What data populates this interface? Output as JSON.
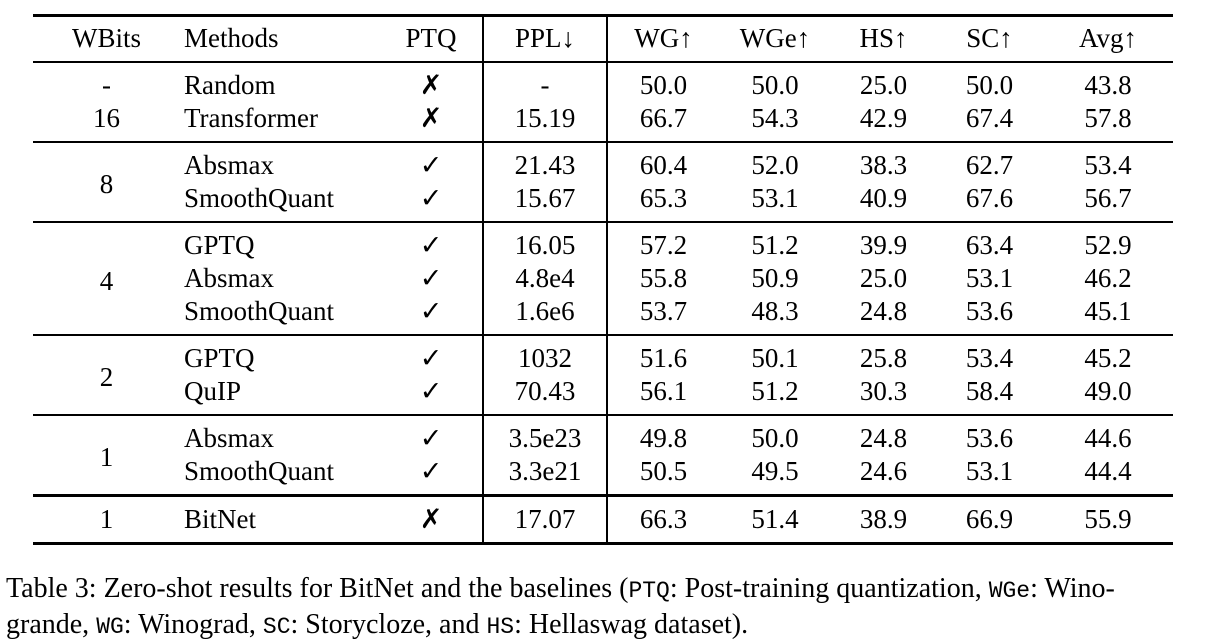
{
  "table": {
    "columns": [
      {
        "key": "wbits",
        "label": "WBits"
      },
      {
        "key": "methods",
        "label": "Methods"
      },
      {
        "key": "ptq",
        "label": "PTQ"
      },
      {
        "key": "ppl",
        "label": "PPL↓"
      },
      {
        "key": "wg",
        "label": "WG↑"
      },
      {
        "key": "wge",
        "label": "WGe↑"
      },
      {
        "key": "hs",
        "label": "HS↑"
      },
      {
        "key": "sc",
        "label": "SC↑"
      },
      {
        "key": "avg",
        "label": "Avg↑"
      }
    ],
    "groups": [
      {
        "wbits": null,
        "rows": [
          [
            "-",
            "Random",
            "✗",
            "-",
            "50.0",
            "50.0",
            "25.0",
            "50.0",
            "43.8"
          ],
          [
            "16",
            "Transformer",
            "✗",
            "15.19",
            "66.7",
            "54.3",
            "42.9",
            "67.4",
            "57.8"
          ]
        ]
      },
      {
        "wbits": "8",
        "rows": [
          [
            "Absmax",
            "✓",
            "21.43",
            "60.4",
            "52.0",
            "38.3",
            "62.7",
            "53.4"
          ],
          [
            "SmoothQuant",
            "✓",
            "15.67",
            "65.3",
            "53.1",
            "40.9",
            "67.6",
            "56.7"
          ]
        ]
      },
      {
        "wbits": "4",
        "rows": [
          [
            "GPTQ",
            "✓",
            "16.05",
            "57.2",
            "51.2",
            "39.9",
            "63.4",
            "52.9"
          ],
          [
            "Absmax",
            "✓",
            "4.8e4",
            "55.8",
            "50.9",
            "25.0",
            "53.1",
            "46.2"
          ],
          [
            "SmoothQuant",
            "✓",
            "1.6e6",
            "53.7",
            "48.3",
            "24.8",
            "53.6",
            "45.1"
          ]
        ]
      },
      {
        "wbits": "2",
        "rows": [
          [
            "GPTQ",
            "✓",
            "1032",
            "51.6",
            "50.1",
            "25.8",
            "53.4",
            "45.2"
          ],
          [
            "QuIP",
            "✓",
            "70.43",
            "56.1",
            "51.2",
            "30.3",
            "58.4",
            "49.0"
          ]
        ]
      },
      {
        "wbits": "1",
        "rows": [
          [
            "Absmax",
            "✓",
            "3.5e23",
            "49.8",
            "50.0",
            "24.8",
            "53.6",
            "44.6"
          ],
          [
            "SmoothQuant",
            "✓",
            "3.3e21",
            "50.5",
            "49.5",
            "24.6",
            "53.1",
            "44.4"
          ]
        ]
      },
      {
        "wbits": "1",
        "bold_method": true,
        "final": true,
        "rows": [
          [
            "BitNet",
            "✗",
            "17.07",
            "66.3",
            "51.4",
            "38.9",
            "66.9",
            "55.9"
          ]
        ]
      }
    ]
  },
  "caption": {
    "lines": [
      [
        {
          "t": "Table 3: Zero-shot results for BitNet and the baselines (",
          "mono": false
        },
        {
          "t": "PTQ",
          "mono": true
        },
        {
          "t": ": Post-training quantization, ",
          "mono": false
        },
        {
          "t": "WGe",
          "mono": true
        },
        {
          "t": ": Wino-",
          "mono": false
        }
      ],
      [
        {
          "t": "grande, ",
          "mono": false
        },
        {
          "t": "WG",
          "mono": true
        },
        {
          "t": ": Winograd, ",
          "mono": false
        },
        {
          "t": "SC",
          "mono": true
        },
        {
          "t": ": Storycloze, and ",
          "mono": false
        },
        {
          "t": "HS",
          "mono": true
        },
        {
          "t": ": Hellaswag dataset).",
          "mono": false
        }
      ]
    ]
  }
}
